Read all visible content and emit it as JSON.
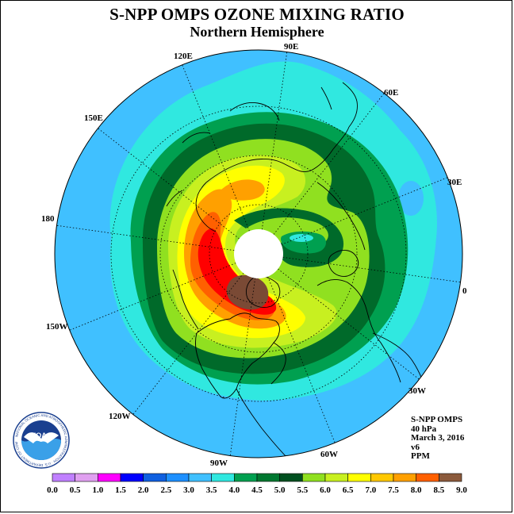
{
  "title": "S-NPP OMPS OZONE MIXING RATIO",
  "subtitle": "Northern Hemisphere",
  "longitude_labels": [
    "120E",
    "90E",
    "60E",
    "30E",
    "0",
    "30W",
    "60W",
    "90W",
    "120W",
    "150W",
    "180",
    "150E"
  ],
  "info": {
    "instrument": "S-NPP OMPS",
    "level": "40 hPa",
    "date": "March 3, 2016",
    "version": "v6",
    "units": "PPM"
  },
  "logo": {
    "text": "NOAA",
    "ring_text": "NATIONAL OCEANIC AND ATMOSPHERIC ADMINISTRATION · U.S. DEPARTMENT OF COMMERCE"
  },
  "colorbar": {
    "labels": [
      "0.0",
      "0.5",
      "1.0",
      "1.5",
      "2.0",
      "2.5",
      "3.0",
      "3.5",
      "4.0",
      "4.5",
      "5.0",
      "5.5",
      "6.0",
      "6.5",
      "7.0",
      "7.5",
      "8.0",
      "8.5",
      "9.0"
    ],
    "colors": [
      "#c080ff",
      "#e0a0f0",
      "#ff00ff",
      "#0000ff",
      "#1060e0",
      "#1e90ff",
      "#40c0ff",
      "#30e8e0",
      "#00a050",
      "#007830",
      "#005020",
      "#90e020",
      "#c8f020",
      "#ffff00",
      "#ffc800",
      "#ffa000",
      "#ff6000",
      "#ff0000",
      "#8b5a3c"
    ]
  },
  "palette": {
    "outer": "#40c0ff",
    "cyan": "#30e8e0",
    "green": "#00a050",
    "darkgreen": "#006a2a",
    "lightgreen": "#90e020",
    "yellowgreen": "#c8f020",
    "yellow": "#ffff00",
    "orange": "#ffa000",
    "redorange": "#ff6000",
    "red": "#ff0000",
    "brown": "#7a4a35",
    "pole": "#ffffff"
  }
}
